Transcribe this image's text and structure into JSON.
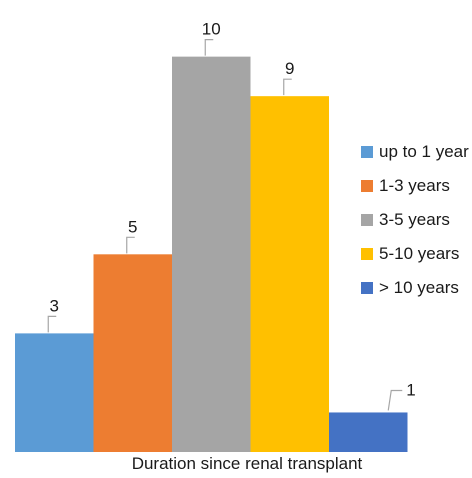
{
  "chart_data": {
    "type": "bar",
    "title": "",
    "xlabel": "Duration since renal transplant",
    "ylabel": "",
    "ylim": [
      0,
      10.8
    ],
    "grid": false,
    "legend_position": "right",
    "data_labels_shown": true,
    "categories": [
      "up to 1 year",
      "1-3 years",
      "3-5 years",
      "5-10 years",
      "> 10 years"
    ],
    "values": [
      3,
      5,
      10,
      9,
      1
    ],
    "data_labels": [
      "3",
      "5",
      "10",
      "9",
      "1"
    ],
    "colors": [
      "#5b9bd5",
      "#ed7d31",
      "#a5a5a5",
      "#ffc000",
      "#4472c4"
    ]
  }
}
